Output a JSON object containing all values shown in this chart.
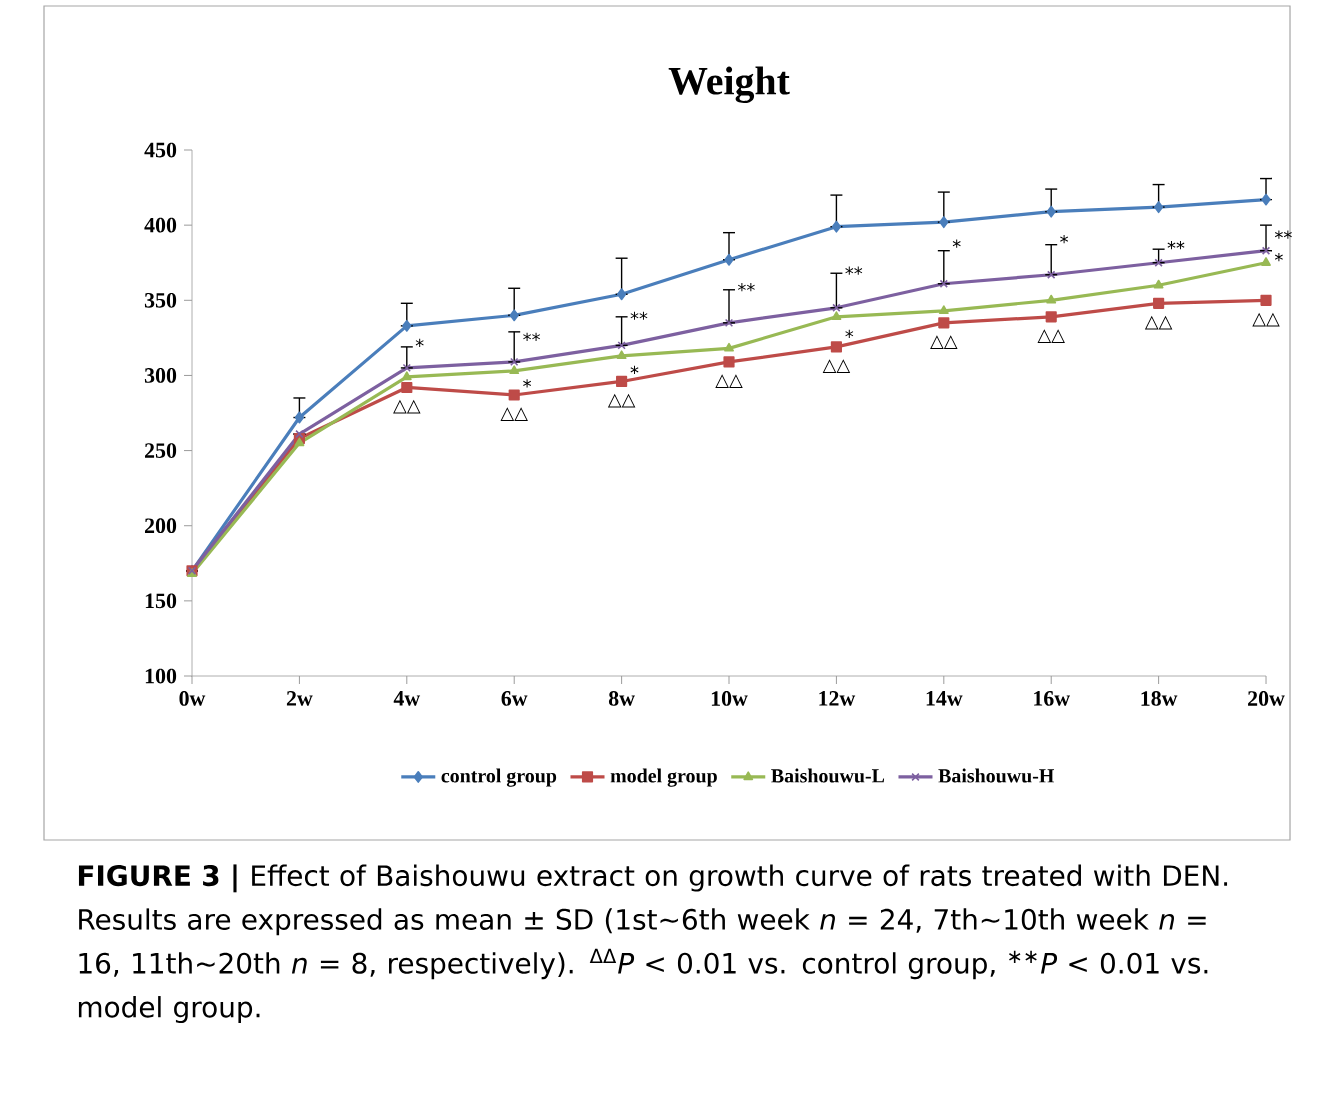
{
  "chart_data": {
    "type": "line",
    "title": "Weight",
    "categories": [
      "0w",
      "2w",
      "4w",
      "6w",
      "8w",
      "10w",
      "12w",
      "14w",
      "16w",
      "18w",
      "20w"
    ],
    "series": [
      {
        "name": "control group",
        "color": "#4a7ebb",
        "marker": "diamond",
        "values": [
          170,
          272,
          333,
          340,
          354,
          377,
          399,
          402,
          409,
          412,
          417
        ],
        "errors": [
          null,
          [
            272,
            285
          ],
          [
            333,
            348
          ],
          [
            340,
            358
          ],
          [
            354,
            378
          ],
          [
            377,
            395
          ],
          [
            399,
            420
          ],
          [
            402,
            422
          ],
          [
            409,
            424
          ],
          [
            412,
            427
          ],
          [
            417,
            431
          ]
        ]
      },
      {
        "name": "model group",
        "color": "#be4b48",
        "marker": "square",
        "values": [
          170,
          258,
          292,
          287,
          296,
          309,
          319,
          335,
          339,
          348,
          350
        ]
      },
      {
        "name": "Baishouwu-L",
        "color": "#98b954",
        "marker": "triangle",
        "values": [
          168,
          255,
          299,
          303,
          313,
          318,
          339,
          343,
          350,
          360,
          375
        ]
      },
      {
        "name": "Baishouwu-H",
        "color": "#7d60a0",
        "marker": "cross",
        "values": [
          170,
          261,
          305,
          309,
          320,
          335,
          345,
          361,
          367,
          375,
          383
        ],
        "errors": [
          null,
          null,
          [
            305,
            319
          ],
          [
            309,
            329
          ],
          [
            320,
            339
          ],
          [
            335,
            357
          ],
          [
            345,
            368
          ],
          [
            361,
            383
          ],
          [
            367,
            387
          ],
          [
            375,
            384
          ],
          [
            383,
            400
          ]
        ]
      }
    ],
    "ylim": [
      100,
      450
    ],
    "yticks": [
      100,
      150,
      200,
      250,
      300,
      350,
      400,
      450
    ],
    "legend": "bottom",
    "line_style": "solid",
    "grid": false,
    "annotations": [
      {
        "text": "*",
        "x": "4w",
        "y": 320
      },
      {
        "text": "△△",
        "x": "4w",
        "y": 292
      },
      {
        "text": "**",
        "x": "6w",
        "y": 324
      },
      {
        "text": "*",
        "x": "6w",
        "y": 293
      },
      {
        "text": "△△",
        "x": "6w",
        "y": 287
      },
      {
        "text": "**",
        "x": "8w",
        "y": 338
      },
      {
        "text": "*",
        "x": "8w",
        "y": 302
      },
      {
        "text": "△△",
        "x": "8w",
        "y": 296
      },
      {
        "text": "**",
        "x": "10w",
        "y": 357
      },
      {
        "text": "△△",
        "x": "10w",
        "y": 309
      },
      {
        "text": "**",
        "x": "12w",
        "y": 368
      },
      {
        "text": "*",
        "x": "12w",
        "y": 326
      },
      {
        "text": "△△",
        "x": "12w",
        "y": 319
      },
      {
        "text": "*",
        "x": "14w",
        "y": 386
      },
      {
        "text": "△△",
        "x": "14w",
        "y": 335
      },
      {
        "text": "*",
        "x": "16w",
        "y": 389
      },
      {
        "text": "△△",
        "x": "16w",
        "y": 339
      },
      {
        "text": "**",
        "x": "18w",
        "y": 385
      },
      {
        "text": "△△",
        "x": "18w",
        "y": 348
      },
      {
        "text": "**",
        "x": "20w",
        "y": 392
      },
      {
        "text": "*",
        "x": "20w",
        "y": 377
      },
      {
        "text": "△△",
        "x": "20w",
        "y": 350
      },
      "**FIGURE 3 |** Effect of Baishouwu extract on growth curve of rats treated with DEN. Results are expressed as mean ± SD (1st∼6th week *n* = 24, 7th∼10th week *n* = 16, 11th∼20th *n* = 8, respectively). $^{ΔΔ}$*P* < 0.01 vs. control group, $^{∗∗}$*P* < 0.01 vs. model group."
    ]
  }
}
